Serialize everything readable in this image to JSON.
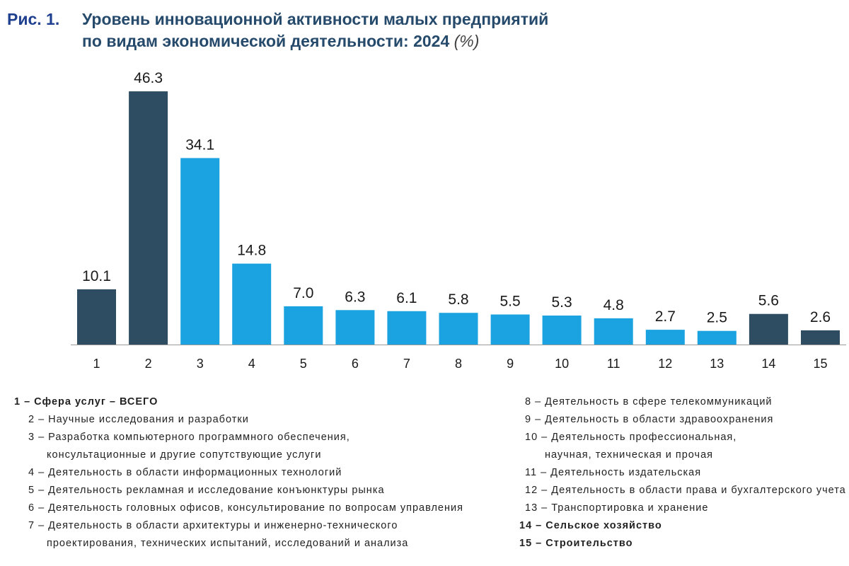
{
  "title": {
    "fig_label": "Рис. 1.",
    "line1": "Уровень инновационной активности малых предприятий",
    "line2": "по видам экономической деятельности: 2024",
    "unit": "(%)"
  },
  "colors": {
    "dark": "#2e4c62",
    "light": "#1aa3e0"
  },
  "chart_data": {
    "type": "bar",
    "categories": [
      "1",
      "2",
      "3",
      "4",
      "5",
      "6",
      "7",
      "8",
      "9",
      "10",
      "11",
      "12",
      "13",
      "14",
      "15"
    ],
    "values": [
      10.1,
      46.3,
      34.1,
      14.8,
      7.0,
      6.3,
      6.1,
      5.8,
      5.5,
      5.3,
      4.8,
      2.7,
      2.5,
      5.6,
      2.6
    ],
    "value_labels": [
      "10.1",
      "46.3",
      "34.1",
      "14.8",
      "7.0",
      "6.3",
      "6.1",
      "5.8",
      "5.5",
      "5.3",
      "4.8",
      "2.7",
      "2.5",
      "5.6",
      "2.6"
    ],
    "bar_colors": [
      "dark",
      "dark",
      "light",
      "light",
      "light",
      "light",
      "light",
      "light",
      "light",
      "light",
      "light",
      "light",
      "light",
      "dark",
      "dark"
    ],
    "ylim": [
      0,
      50
    ],
    "grid": false
  },
  "legend": {
    "left": [
      {
        "text": "1 – Сфера услуг – ВСЕГО",
        "bold": true,
        "indent": 0
      },
      {
        "text": "2 – Научные исследования и разработки",
        "bold": false,
        "indent": 1
      },
      {
        "text": "3 – Разработка компьютерного программного обеспечения,",
        "bold": false,
        "indent": 1
      },
      {
        "text": "консультационные и другие сопутствующие услуги",
        "bold": false,
        "indent": 2
      },
      {
        "text": "4 – Деятельность в области информационных технологий",
        "bold": false,
        "indent": 1
      },
      {
        "text": "5 – Деятельность рекламная и исследование конъюнктуры рынка",
        "bold": false,
        "indent": 1
      },
      {
        "text": "6 – Деятельность головных офисов, консультирование по вопросам управления",
        "bold": false,
        "indent": 1
      },
      {
        "text": "7 – Деятельность в области архитектуры и инженерно-технического",
        "bold": false,
        "indent": 1
      },
      {
        "text": "проектирования, технических испытаний, исследований и анализа",
        "bold": false,
        "indent": 2
      }
    ],
    "right": [
      {
        "text": "8 – Деятельность в сфере телекоммуникаций",
        "bold": false,
        "indent": 0
      },
      {
        "text": "9 – Деятельность в области здравоохранения",
        "bold": false,
        "indent": 0
      },
      {
        "text": "10 – Деятельность профессиональная,",
        "bold": false,
        "indent": 0
      },
      {
        "text": "научная, техническая и прочая",
        "bold": false,
        "indent": 2
      },
      {
        "text": "11 – Деятельность издательская",
        "bold": false,
        "indent": 0
      },
      {
        "text": "12 – Деятельность в области права и бухгалтерского учета",
        "bold": false,
        "indent": 0
      },
      {
        "text": "13 – Транспортировка и хранение",
        "bold": false,
        "indent": 0
      },
      {
        "text": "14 – Сельское хозяйство",
        "bold": true,
        "indent": -1
      },
      {
        "text": "15 – Строительство",
        "bold": true,
        "indent": -1
      }
    ]
  }
}
